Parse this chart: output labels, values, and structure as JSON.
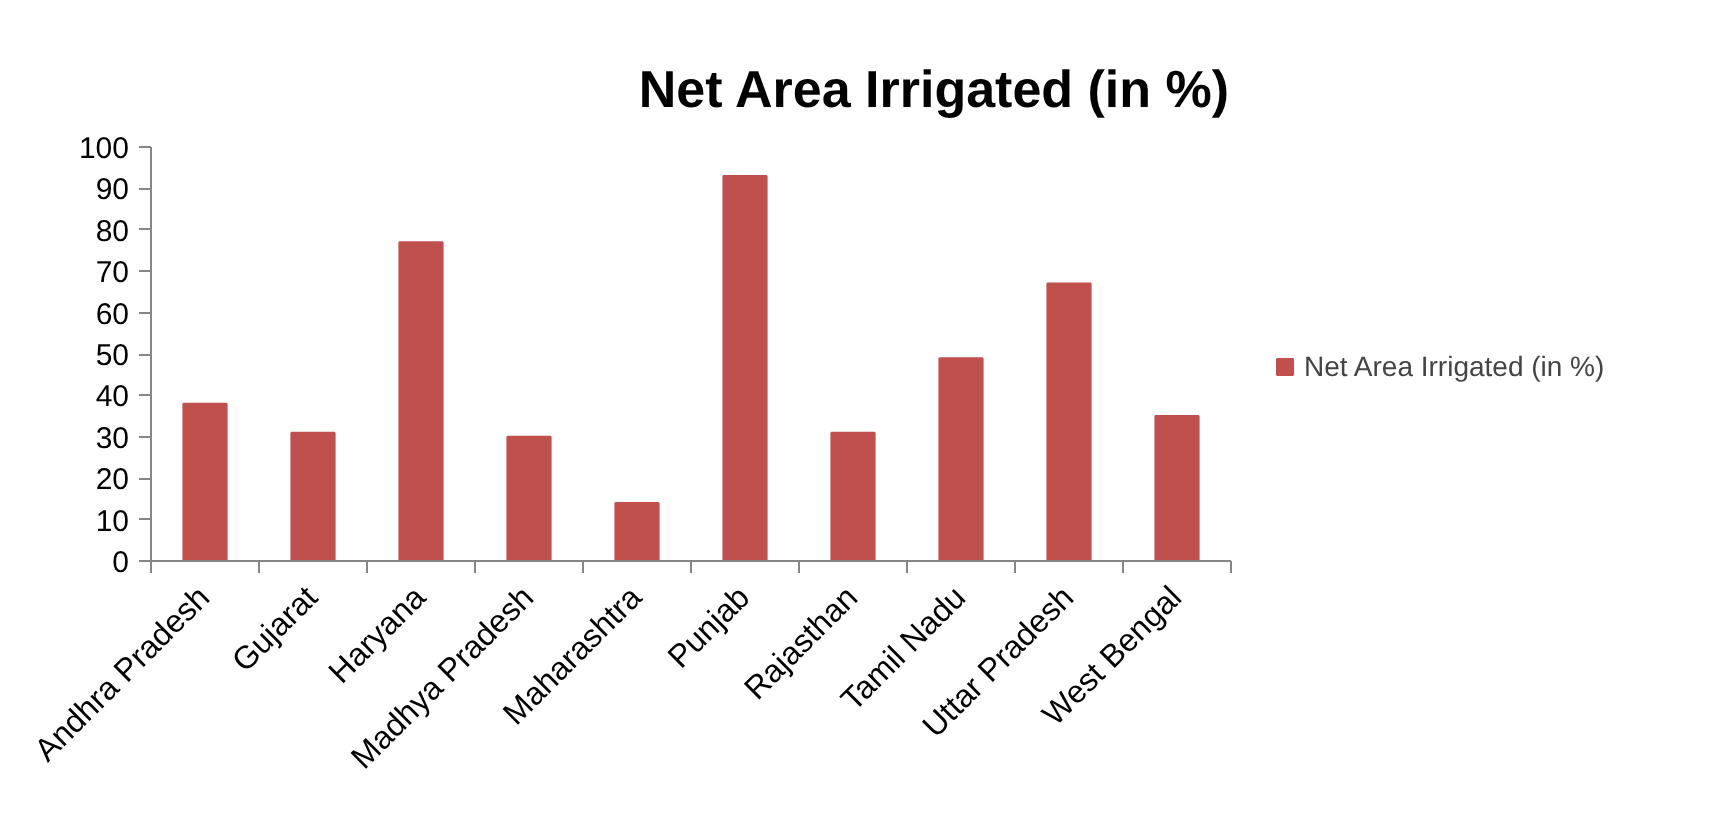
{
  "chart_data": {
    "type": "bar",
    "title": "Net Area Irrigated (in %)",
    "categories": [
      "Andhra Pradesh",
      "Gujarat",
      "Haryana",
      "Madhya Pradesh",
      "Maharashtra",
      "Punjab",
      "Rajasthan",
      "Tamil Nadu",
      "Uttar Pradesh",
      "West Bengal"
    ],
    "series": [
      {
        "name": "Net Area Irrigated (in %)",
        "color": "#c0504d",
        "values": [
          38,
          31,
          77,
          30,
          14,
          93,
          31,
          49,
          67,
          35
        ]
      }
    ],
    "ylim": [
      0,
      100
    ],
    "yticks": [
      0,
      10,
      20,
      30,
      40,
      50,
      60,
      70,
      80,
      90,
      100
    ],
    "legend": "right"
  }
}
